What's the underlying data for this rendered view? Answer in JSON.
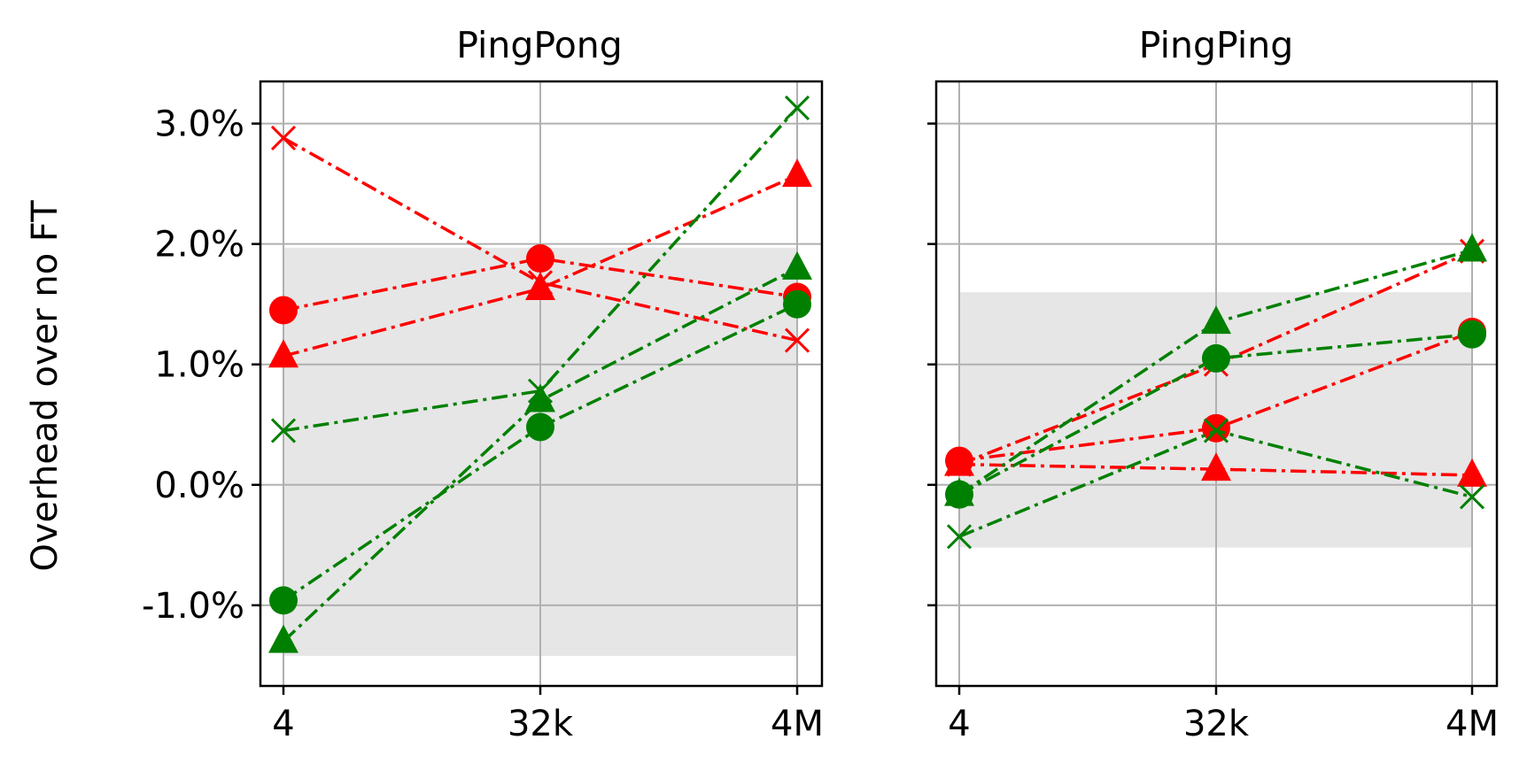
{
  "chart_data": [
    {
      "type": "line",
      "title": "PingPong",
      "ylabel": "Overhead over no FT",
      "xlabel": "",
      "categories": [
        "4",
        "32k",
        "4M"
      ],
      "ylim": [
        -1.67,
        3.35
      ],
      "yticks": [
        -1.0,
        0.0,
        1.0,
        2.0,
        3.0
      ],
      "ytick_labels": [
        "-1.0%",
        "0.0%",
        "1.0%",
        "2.0%",
        "3.0%"
      ],
      "shaded_band": [
        -1.42,
        1.97
      ],
      "grid": true,
      "series": [
        {
          "color": "#ff0000",
          "marker": "x",
          "values": [
            2.88,
            1.68,
            1.2
          ]
        },
        {
          "color": "#ff0000",
          "marker": "o",
          "values": [
            1.45,
            1.88,
            1.56
          ]
        },
        {
          "color": "#ff0000",
          "marker": "^",
          "values": [
            1.07,
            1.63,
            2.57
          ]
        },
        {
          "color": "#008000",
          "marker": "x",
          "values": [
            0.45,
            0.78,
            3.13
          ]
        },
        {
          "color": "#008000",
          "marker": "o",
          "values": [
            -0.96,
            0.48,
            1.5
          ]
        },
        {
          "color": "#008000",
          "marker": "^",
          "values": [
            -1.3,
            0.7,
            1.8
          ]
        }
      ]
    },
    {
      "type": "line",
      "title": "PingPing",
      "ylabel": "",
      "xlabel": "",
      "categories": [
        "4",
        "32k",
        "4M"
      ],
      "ylim": [
        -1.67,
        3.35
      ],
      "yticks": [
        -1.0,
        0.0,
        1.0,
        2.0,
        3.0
      ],
      "ytick_labels": [
        "",
        "",
        "",
        "",
        ""
      ],
      "shaded_band": [
        -0.52,
        1.6
      ],
      "grid": true,
      "series": [
        {
          "color": "#ff0000",
          "marker": "x",
          "values": [
            0.17,
            1.0,
            1.94
          ]
        },
        {
          "color": "#ff0000",
          "marker": "o",
          "values": [
            0.2,
            0.47,
            1.27
          ]
        },
        {
          "color": "#ff0000",
          "marker": "^",
          "values": [
            0.17,
            0.13,
            0.08
          ]
        },
        {
          "color": "#008000",
          "marker": "x",
          "values": [
            -0.43,
            0.45,
            -0.1
          ]
        },
        {
          "color": "#008000",
          "marker": "o",
          "values": [
            -0.08,
            1.05,
            1.25
          ]
        },
        {
          "color": "#008000",
          "marker": "^",
          "values": [
            -0.08,
            1.35,
            1.95
          ]
        }
      ]
    }
  ]
}
